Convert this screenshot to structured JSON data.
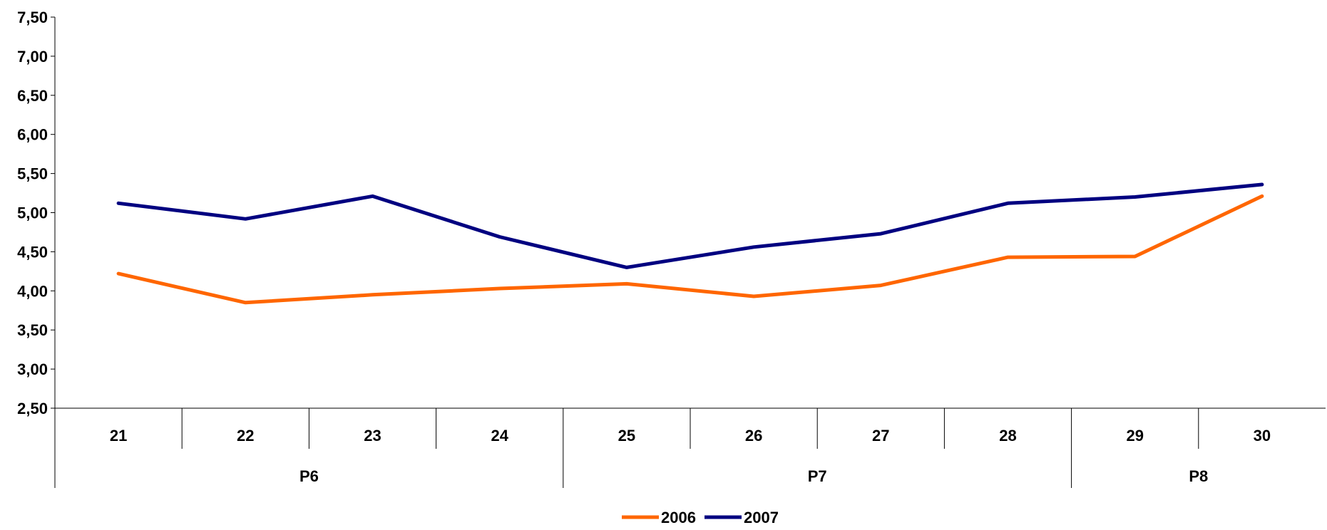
{
  "chart_data": {
    "type": "line",
    "title": "",
    "xlabel": "",
    "ylabel": "",
    "ylim": [
      2.5,
      7.5
    ],
    "yticks": [
      "2,50",
      "3,00",
      "3,50",
      "4,00",
      "4,50",
      "5,00",
      "5,50",
      "6,00",
      "6,50",
      "7,00",
      "7,50"
    ],
    "categories": [
      "21",
      "22",
      "23",
      "24",
      "25",
      "26",
      "27",
      "28",
      "29",
      "30"
    ],
    "groups": [
      {
        "label": "P6",
        "span": [
          0,
          3
        ]
      },
      {
        "label": "P7",
        "span": [
          4,
          7
        ]
      },
      {
        "label": "P8",
        "span": [
          8,
          9
        ]
      }
    ],
    "series": [
      {
        "name": "2006",
        "color": "#FF6600",
        "values": [
          4.22,
          3.85,
          3.95,
          4.03,
          4.09,
          3.93,
          4.07,
          4.43,
          4.44,
          5.21
        ]
      },
      {
        "name": "2007",
        "color": "#000080",
        "values": [
          5.12,
          4.92,
          5.21,
          4.69,
          4.3,
          4.56,
          4.73,
          5.12,
          5.2,
          5.36
        ]
      }
    ],
    "grid": false,
    "legend": "bottom"
  }
}
